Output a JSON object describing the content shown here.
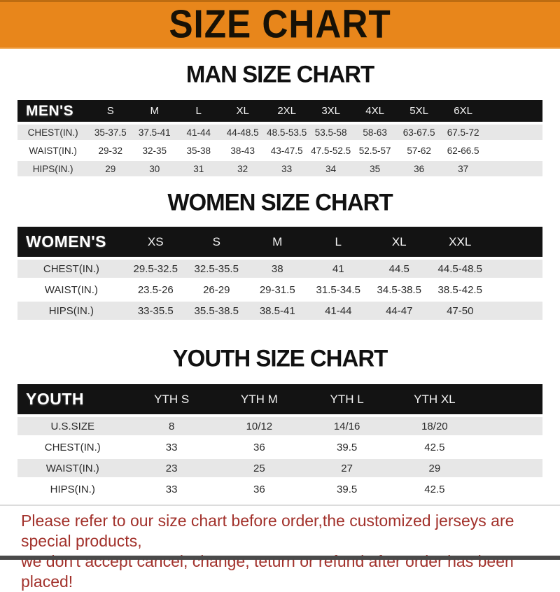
{
  "banner": {
    "title": "SIZE CHART"
  },
  "men": {
    "heading": "MAN SIZE CHART",
    "table": {
      "label": "MEN'S",
      "columns": [
        "S",
        "M",
        "L",
        "XL",
        "2XL",
        "3XL",
        "4XL",
        "5XL",
        "6XL"
      ],
      "rows": [
        {
          "label": "CHEST(IN.)",
          "values": [
            "35-37.5",
            "37.5-41",
            "41-44",
            "44-48.5",
            "48.5-53.5",
            "53.5-58",
            "58-63",
            "63-67.5",
            "67.5-72"
          ]
        },
        {
          "label": "WAIST(IN.)",
          "values": [
            "29-32",
            "32-35",
            "35-38",
            "38-43",
            "43-47.5",
            "47.5-52.5",
            "52.5-57",
            "57-62",
            "62-66.5"
          ]
        },
        {
          "label": "HIPS(IN.)",
          "values": [
            "29",
            "30",
            "31",
            "32",
            "33",
            "34",
            "35",
            "36",
            "37"
          ]
        }
      ]
    }
  },
  "women": {
    "heading": "WOMEN SIZE CHART",
    "table": {
      "label": "WOMEN'S",
      "columns": [
        "XS",
        "S",
        "M",
        "L",
        "XL",
        "XXL"
      ],
      "rows": [
        {
          "label": "CHEST(IN.)",
          "values": [
            "29.5-32.5",
            "32.5-35.5",
            "38",
            "41",
            "44.5",
            "44.5-48.5"
          ]
        },
        {
          "label": "WAIST(IN.)",
          "values": [
            "23.5-26",
            "26-29",
            "29-31.5",
            "31.5-34.5",
            "34.5-38.5",
            "38.5-42.5"
          ]
        },
        {
          "label": "HIPS(IN.)",
          "values": [
            "33-35.5",
            "35.5-38.5",
            "38.5-41",
            "41-44",
            "44-47",
            "47-50"
          ]
        }
      ]
    }
  },
  "youth": {
    "heading": "YOUTH SIZE CHART",
    "table": {
      "label": "YOUTH",
      "columns": [
        "YTH S",
        "YTH M",
        "YTH L",
        "YTH XL"
      ],
      "rows": [
        {
          "label": "U.S.SIZE",
          "values": [
            "8",
            "10/12",
            "14/16",
            "18/20"
          ]
        },
        {
          "label": "CHEST(IN.)",
          "values": [
            "33",
            "36",
            "39.5",
            "42.5"
          ]
        },
        {
          "label": "WAIST(IN.)",
          "values": [
            "23",
            "25",
            "27",
            "29"
          ]
        },
        {
          "label": "HIPS(IN.)",
          "values": [
            "33",
            "36",
            "39.5",
            "42.5"
          ]
        }
      ]
    }
  },
  "footer": {
    "line1": "Please refer to our size chart before order,the customized jerseys are special products,",
    "line2": "we don't accept cancel, change, teturn or refund after order has been placed!"
  },
  "colors": {
    "banner_orange": "#E8861B",
    "header_black": "#131313",
    "row_gray": "#E7E7E7",
    "footer_red": "#A2312B",
    "bottom_bar": "#4A4A4A"
  }
}
